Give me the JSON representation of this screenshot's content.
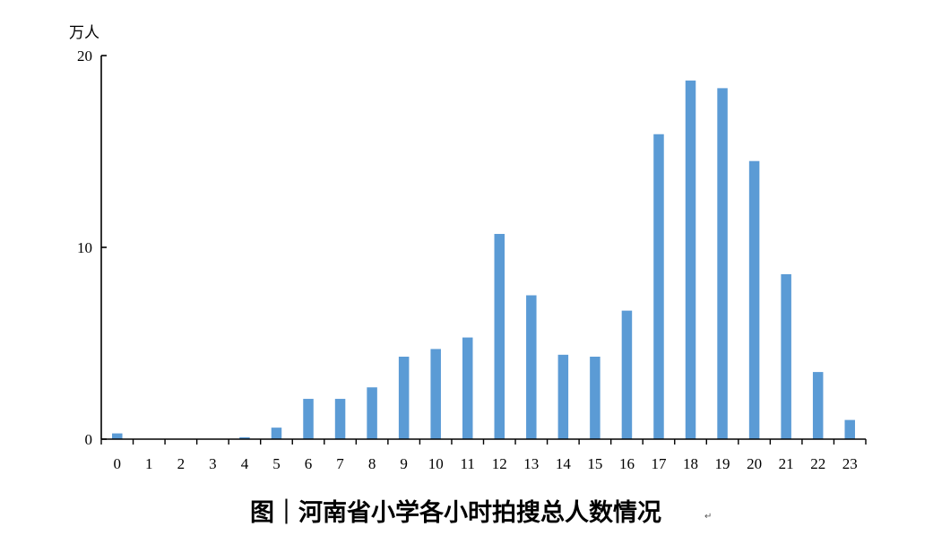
{
  "chart_data": {
    "type": "bar",
    "title": "图｜河南省小学各小时拍搜总人数情况",
    "unit_label": "万人",
    "paragraph_mark": "↵",
    "xlabel": "",
    "ylabel": "",
    "ylim": [
      0,
      20
    ],
    "yticks": [
      0,
      10,
      20
    ],
    "grid": false,
    "legend": "none",
    "bar_color": "#5B9BD5",
    "categories": [
      "0",
      "1",
      "2",
      "3",
      "4",
      "5",
      "6",
      "7",
      "8",
      "9",
      "10",
      "11",
      "12",
      "13",
      "14",
      "15",
      "16",
      "17",
      "18",
      "19",
      "20",
      "21",
      "22",
      "23"
    ],
    "values": [
      0.3,
      0,
      0,
      0,
      0.1,
      0.6,
      2.1,
      2.1,
      2.7,
      4.3,
      4.7,
      5.3,
      10.7,
      7.5,
      4.4,
      4.3,
      6.7,
      15.9,
      18.7,
      18.3,
      14.5,
      8.6,
      3.5,
      1.0
    ]
  }
}
